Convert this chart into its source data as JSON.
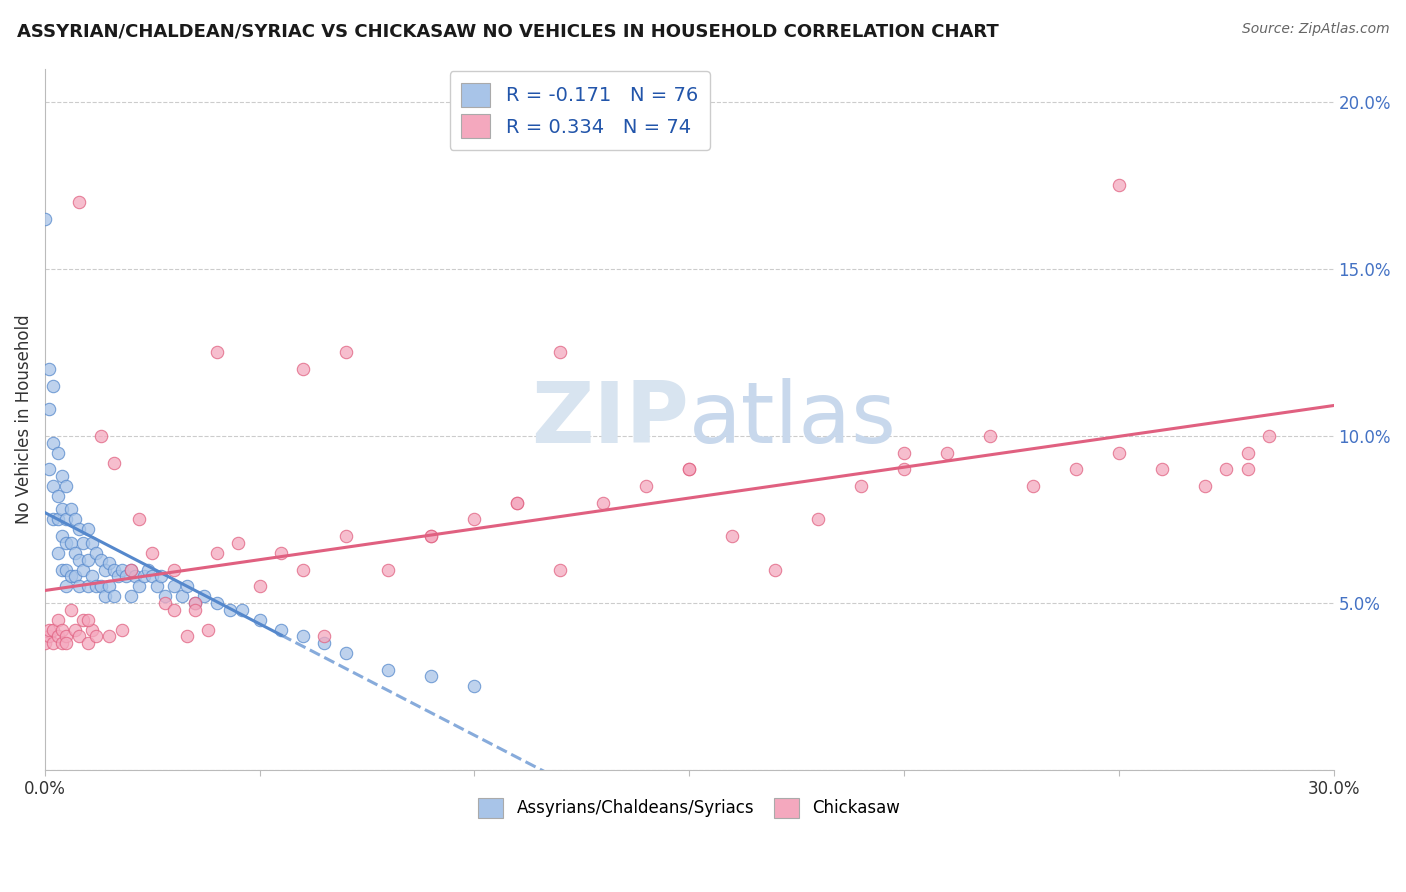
{
  "title": "ASSYRIAN/CHALDEAN/SYRIAC VS CHICKASAW NO VEHICLES IN HOUSEHOLD CORRELATION CHART",
  "source_text": "Source: ZipAtlas.com",
  "ylabel": "No Vehicles in Household",
  "xlabel_assyrian": "Assyrians/Chaldeans/Syriacs",
  "xlabel_chickasaw": "Chickasaw",
  "background_color": "#ffffff",
  "xlim": [
    0.0,
    0.3
  ],
  "ylim": [
    0.0,
    0.21
  ],
  "assyrian_color": "#a8c4e8",
  "chickasaw_color": "#f4a8be",
  "assyrian_line_color": "#5588cc",
  "chickasaw_line_color": "#e06080",
  "R_assyrian": -0.171,
  "N_assyrian": 76,
  "R_chickasaw": 0.334,
  "N_chickasaw": 74,
  "legend_color": "#2255aa",
  "watermark_color": "#d8e4f0",
  "assyrian_x": [
    0.0,
    0.001,
    0.001,
    0.001,
    0.002,
    0.002,
    0.002,
    0.002,
    0.003,
    0.003,
    0.003,
    0.003,
    0.004,
    0.004,
    0.004,
    0.004,
    0.005,
    0.005,
    0.005,
    0.005,
    0.005,
    0.006,
    0.006,
    0.006,
    0.007,
    0.007,
    0.007,
    0.008,
    0.008,
    0.008,
    0.009,
    0.009,
    0.01,
    0.01,
    0.01,
    0.011,
    0.011,
    0.012,
    0.012,
    0.013,
    0.013,
    0.014,
    0.014,
    0.015,
    0.015,
    0.016,
    0.016,
    0.017,
    0.018,
    0.019,
    0.02,
    0.02,
    0.021,
    0.022,
    0.023,
    0.024,
    0.025,
    0.026,
    0.027,
    0.028,
    0.03,
    0.032,
    0.033,
    0.035,
    0.037,
    0.04,
    0.043,
    0.046,
    0.05,
    0.055,
    0.06,
    0.065,
    0.07,
    0.08,
    0.09,
    0.1
  ],
  "assyrian_y": [
    0.165,
    0.12,
    0.108,
    0.09,
    0.115,
    0.098,
    0.085,
    0.075,
    0.095,
    0.082,
    0.075,
    0.065,
    0.088,
    0.078,
    0.07,
    0.06,
    0.085,
    0.075,
    0.068,
    0.06,
    0.055,
    0.078,
    0.068,
    0.058,
    0.075,
    0.065,
    0.058,
    0.072,
    0.063,
    0.055,
    0.068,
    0.06,
    0.072,
    0.063,
    0.055,
    0.068,
    0.058,
    0.065,
    0.055,
    0.063,
    0.055,
    0.06,
    0.052,
    0.062,
    0.055,
    0.06,
    0.052,
    0.058,
    0.06,
    0.058,
    0.06,
    0.052,
    0.058,
    0.055,
    0.058,
    0.06,
    0.058,
    0.055,
    0.058,
    0.052,
    0.055,
    0.052,
    0.055,
    0.05,
    0.052,
    0.05,
    0.048,
    0.048,
    0.045,
    0.042,
    0.04,
    0.038,
    0.035,
    0.03,
    0.028,
    0.025
  ],
  "chickasaw_x": [
    0.0,
    0.001,
    0.001,
    0.002,
    0.002,
    0.003,
    0.003,
    0.004,
    0.004,
    0.005,
    0.005,
    0.006,
    0.007,
    0.008,
    0.009,
    0.01,
    0.011,
    0.012,
    0.013,
    0.015,
    0.016,
    0.018,
    0.02,
    0.022,
    0.025,
    0.028,
    0.03,
    0.033,
    0.035,
    0.038,
    0.04,
    0.045,
    0.05,
    0.055,
    0.06,
    0.065,
    0.07,
    0.08,
    0.09,
    0.1,
    0.11,
    0.12,
    0.13,
    0.14,
    0.15,
    0.16,
    0.17,
    0.18,
    0.19,
    0.2,
    0.21,
    0.22,
    0.23,
    0.24,
    0.25,
    0.26,
    0.27,
    0.275,
    0.28,
    0.285,
    0.04,
    0.008,
    0.12,
    0.06,
    0.15,
    0.2,
    0.25,
    0.28,
    0.01,
    0.035,
    0.09,
    0.11,
    0.03,
    0.07
  ],
  "chickasaw_y": [
    0.038,
    0.04,
    0.042,
    0.038,
    0.042,
    0.04,
    0.045,
    0.038,
    0.042,
    0.04,
    0.038,
    0.048,
    0.042,
    0.04,
    0.045,
    0.038,
    0.042,
    0.04,
    0.1,
    0.04,
    0.092,
    0.042,
    0.06,
    0.075,
    0.065,
    0.05,
    0.06,
    0.04,
    0.05,
    0.042,
    0.065,
    0.068,
    0.055,
    0.065,
    0.06,
    0.04,
    0.07,
    0.06,
    0.07,
    0.075,
    0.08,
    0.06,
    0.08,
    0.085,
    0.09,
    0.07,
    0.06,
    0.075,
    0.085,
    0.09,
    0.095,
    0.1,
    0.085,
    0.09,
    0.095,
    0.09,
    0.085,
    0.09,
    0.095,
    0.1,
    0.125,
    0.17,
    0.125,
    0.12,
    0.09,
    0.095,
    0.175,
    0.09,
    0.045,
    0.048,
    0.07,
    0.08,
    0.048,
    0.125
  ],
  "assyrian_line_x_solid_end": 0.055,
  "assyrian_line_x_dash_end": 0.3,
  "chickasaw_line_x_start": 0.0,
  "chickasaw_line_x_end": 0.3
}
